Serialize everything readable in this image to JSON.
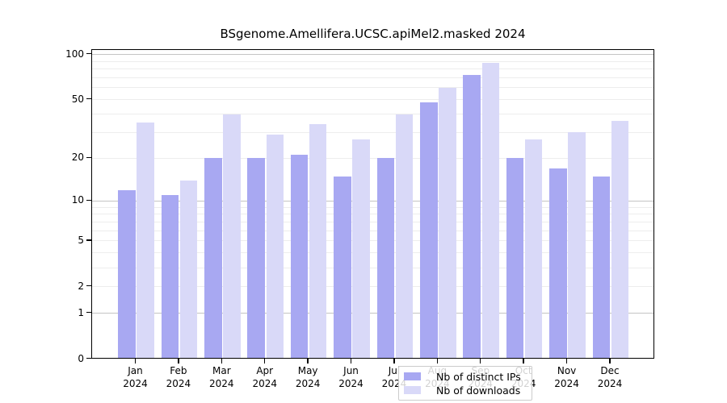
{
  "title": "BSgenome.Amellifera.UCSC.apiMel2.masked 2024",
  "legend": {
    "series1_label": "Nb of distinct IPs",
    "series2_label": "Nb of downloads"
  },
  "chart_data": {
    "type": "bar",
    "scale": "log1p",
    "title": "BSgenome.Amellifera.UCSC.apiMel2.masked 2024",
    "categories": [
      "Jan",
      "Feb",
      "Mar",
      "Apr",
      "May",
      "Jun",
      "Jul",
      "Aug",
      "Sep",
      "Oct",
      "Nov",
      "Dec"
    ],
    "year": "2024",
    "series": [
      {
        "name": "Nb of distinct IPs",
        "color": "#a8a8f2",
        "values": [
          12,
          11,
          20,
          20,
          21,
          15,
          20,
          48,
          73,
          20,
          17,
          15
        ]
      },
      {
        "name": "Nb of downloads",
        "color": "#d9d9f8",
        "values": [
          35,
          14,
          40,
          29,
          34,
          27,
          40,
          60,
          88,
          27,
          30,
          36
        ]
      }
    ],
    "xlabel": "",
    "ylabel": "",
    "y_ticks": [
      0,
      1,
      2,
      5,
      10,
      20,
      50,
      100
    ],
    "y_minor_gridlines": [
      2,
      3,
      4,
      5,
      6,
      7,
      8,
      9,
      20,
      30,
      40,
      50,
      60,
      70,
      80,
      90
    ],
    "y_major_gridlines": [
      1,
      10,
      100
    ],
    "ylim": [
      0,
      108
    ],
    "grid": "on",
    "legend_position": "bottom-center-inside",
    "colors": {
      "major_gridline": "#c4c4c4",
      "minor_gridline": "#ededed",
      "axis": "#000000",
      "legend_border": "#cccccc"
    }
  }
}
